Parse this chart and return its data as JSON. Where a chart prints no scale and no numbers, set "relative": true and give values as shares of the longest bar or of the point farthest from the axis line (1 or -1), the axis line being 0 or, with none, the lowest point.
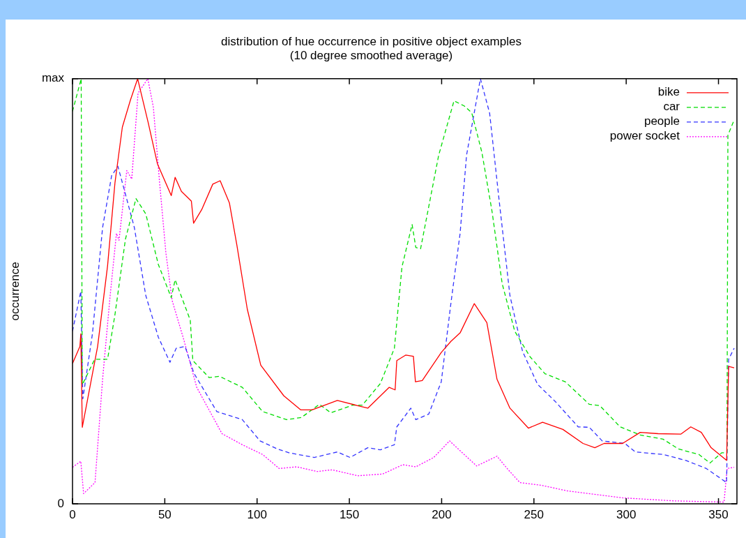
{
  "chart_data": {
    "type": "line",
    "title": "distribution of hue occurrence in positive object examples\n(10 degree smoothed average)",
    "ylabel": "occurrence",
    "xlim": [
      0,
      360
    ],
    "xticks": [
      0,
      50,
      100,
      150,
      200,
      250,
      300,
      350
    ],
    "relative": true,
    "annotations": [
      "0",
      "max"
    ],
    "grid": false,
    "legend": "top right",
    "marker": "none",
    "series": [
      {
        "name": "bike",
        "color": "#ff0000",
        "line_style": "solid",
        "x": [
          0,
          4,
          4.5,
          5.3,
          13.6,
          19,
          23,
          27,
          31.4,
          35.3,
          41,
          46,
          53.5,
          55.6,
          59,
          64.4,
          65.6,
          70,
          76,
          80,
          85,
          89,
          94.7,
          102,
          114.5,
          123.6,
          129.8,
          143.5,
          154.5,
          160,
          171.6,
          174.8,
          175.7,
          180.6,
          184.7,
          185.8,
          189.5,
          199.8,
          205,
          210,
          217.7,
          224.5,
          230,
          237,
          247,
          254.7,
          265.7,
          276.6,
          283,
          288,
          298,
          307.6,
          317.3,
          329.7,
          335,
          340.7,
          346,
          354.4,
          355.5,
          358.5
        ],
        "values": [
          0.33,
          0.37,
          0.4,
          0.18,
          0.37,
          0.56,
          0.755,
          0.886,
          0.95,
          1.0,
          0.897,
          0.8,
          0.725,
          0.768,
          0.735,
          0.712,
          0.66,
          0.692,
          0.752,
          0.76,
          0.708,
          0.61,
          0.458,
          0.326,
          0.254,
          0.221,
          0.221,
          0.243,
          0.231,
          0.225,
          0.274,
          0.268,
          0.337,
          0.35,
          0.347,
          0.287,
          0.29,
          0.356,
          0.382,
          0.402,
          0.471,
          0.426,
          0.293,
          0.225,
          0.178,
          0.192,
          0.175,
          0.142,
          0.132,
          0.142,
          0.142,
          0.168,
          0.165,
          0.164,
          0.181,
          0.168,
          0.132,
          0.102,
          0.323,
          0.32
        ]
      },
      {
        "name": "car",
        "color": "#00dd00",
        "line_style": "dashed",
        "x": [
          0,
          4.7,
          5.3,
          12,
          19,
          23,
          28.7,
          34.4,
          39.7,
          46.5,
          53.5,
          55.6,
          63.8,
          65.2,
          74,
          79.6,
          92,
          103,
          116,
          124,
          133.8,
          140,
          151.7,
          157,
          166.8,
          174.4,
          178.5,
          184,
          186,
          188.6,
          198.4,
          206.7,
          212.2,
          216.3,
          221.8,
          227.3,
          232.8,
          239.6,
          247.9,
          256,
          267,
          280,
          285.7,
          296.7,
          307.6,
          320,
          328.3,
          339.4,
          345.4,
          351.7,
          354.6,
          355.1,
          358.5
        ],
        "values": [
          0.923,
          1.0,
          0.28,
          0.34,
          0.34,
          0.445,
          0.623,
          0.718,
          0.682,
          0.563,
          0.485,
          0.527,
          0.432,
          0.337,
          0.297,
          0.3,
          0.274,
          0.217,
          0.198,
          0.203,
          0.234,
          0.214,
          0.232,
          0.232,
          0.283,
          0.366,
          0.557,
          0.657,
          0.603,
          0.6,
          0.82,
          0.948,
          0.936,
          0.92,
          0.827,
          0.688,
          0.518,
          0.406,
          0.346,
          0.306,
          0.287,
          0.234,
          0.231,
          0.181,
          0.162,
          0.152,
          0.129,
          0.116,
          0.096,
          0.12,
          0.12,
          0.867,
          0.903
        ]
      },
      {
        "name": "people",
        "color": "#3333ff",
        "line_style": "dashed",
        "x": [
          0,
          4.5,
          5.6,
          10.8,
          16.3,
          21.2,
          24.6,
          28.7,
          33.5,
          39.7,
          46.5,
          52.8,
          56.2,
          61,
          65.8,
          78.2,
          92,
          101.6,
          111,
          117.3,
          131,
          143.5,
          150.4,
          160,
          166.8,
          174.4,
          175.7,
          183.3,
          186,
          193,
          199.8,
          205,
          210,
          213.5,
          221,
          226,
          231.3,
          237,
          243.8,
          252,
          261.5,
          274,
          280,
          287,
          299.3,
          305,
          320,
          332.4,
          343.4,
          354.4,
          355.5,
          358.5
        ],
        "values": [
          0.406,
          0.5,
          0.247,
          0.4,
          0.65,
          0.772,
          0.794,
          0.728,
          0.65,
          0.49,
          0.392,
          0.333,
          0.366,
          0.37,
          0.307,
          0.217,
          0.198,
          0.148,
          0.129,
          0.12,
          0.109,
          0.122,
          0.109,
          0.132,
          0.127,
          0.139,
          0.181,
          0.225,
          0.198,
          0.211,
          0.287,
          0.471,
          0.636,
          0.82,
          1.0,
          0.919,
          0.708,
          0.49,
          0.359,
          0.281,
          0.241,
          0.181,
          0.18,
          0.148,
          0.142,
          0.122,
          0.116,
          0.102,
          0.083,
          0.05,
          0.34,
          0.366
        ]
      },
      {
        "name": "power socket",
        "color": "#ff00ff",
        "line_style": "dotted",
        "x": [
          0,
          4.5,
          6,
          12.2,
          16.3,
          20.4,
          23.8,
          25.2,
          29.4,
          32.1,
          35.5,
          40.8,
          43.8,
          47.2,
          50.6,
          54,
          60.3,
          67.3,
          81,
          92,
          103,
          112,
          121.5,
          132.5,
          140.7,
          154.5,
          168,
          179,
          186,
          195.7,
          204.3,
          212.2,
          219,
          230,
          235.5,
          242.4,
          254.7,
          268.5,
          298,
          325.6,
          353,
          354.7,
          358.5
        ],
        "values": [
          0.086,
          0.1,
          0.024,
          0.05,
          0.293,
          0.49,
          0.636,
          0.62,
          0.784,
          0.764,
          0.966,
          1.0,
          0.933,
          0.755,
          0.59,
          0.478,
          0.386,
          0.274,
          0.165,
          0.139,
          0.116,
          0.083,
          0.087,
          0.076,
          0.08,
          0.066,
          0.07,
          0.092,
          0.087,
          0.109,
          0.148,
          0.116,
          0.089,
          0.112,
          0.083,
          0.05,
          0.043,
          0.03,
          0.014,
          0.007,
          0.004,
          0.083,
          0.086
        ]
      }
    ]
  }
}
